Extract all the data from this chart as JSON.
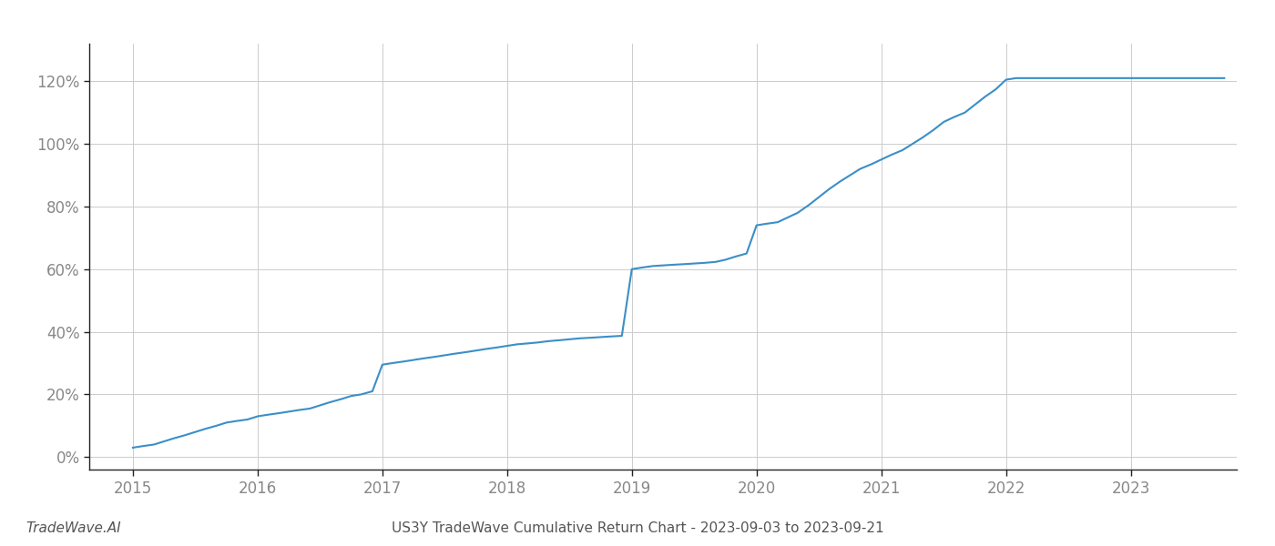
{
  "title": "US3Y TradeWave Cumulative Return Chart - 2023-09-03 to 2023-09-21",
  "watermark": "TradeWave.AI",
  "line_color": "#3a8fc7",
  "background_color": "#ffffff",
  "grid_color": "#cccccc",
  "x_values": [
    2015.0,
    2015.08,
    2015.17,
    2015.25,
    2015.33,
    2015.42,
    2015.5,
    2015.58,
    2015.67,
    2015.75,
    2015.83,
    2015.92,
    2016.0,
    2016.08,
    2016.17,
    2016.25,
    2016.33,
    2016.42,
    2016.5,
    2016.58,
    2016.67,
    2016.75,
    2016.83,
    2016.92,
    2017.0,
    2017.08,
    2017.17,
    2017.25,
    2017.33,
    2017.42,
    2017.5,
    2017.58,
    2017.67,
    2017.75,
    2017.83,
    2017.92,
    2018.0,
    2018.08,
    2018.17,
    2018.25,
    2018.33,
    2018.42,
    2018.5,
    2018.58,
    2018.67,
    2018.75,
    2018.83,
    2018.92,
    2019.0,
    2019.08,
    2019.17,
    2019.25,
    2019.33,
    2019.42,
    2019.5,
    2019.58,
    2019.67,
    2019.75,
    2019.83,
    2019.92,
    2020.0,
    2020.08,
    2020.17,
    2020.25,
    2020.33,
    2020.42,
    2020.5,
    2020.58,
    2020.67,
    2020.75,
    2020.83,
    2020.92,
    2021.0,
    2021.08,
    2021.17,
    2021.25,
    2021.33,
    2021.42,
    2021.5,
    2021.58,
    2021.67,
    2021.75,
    2021.83,
    2021.92,
    2022.0,
    2022.08,
    2022.17,
    2022.25,
    2022.5,
    2022.75,
    2023.0,
    2023.5,
    2023.75
  ],
  "y_values": [
    3.0,
    3.5,
    4.0,
    5.0,
    6.0,
    7.0,
    8.0,
    9.0,
    10.0,
    11.0,
    11.5,
    12.0,
    13.0,
    13.5,
    14.0,
    14.5,
    15.0,
    15.5,
    16.5,
    17.5,
    18.5,
    19.5,
    20.0,
    21.0,
    29.5,
    30.0,
    30.5,
    31.0,
    31.5,
    32.0,
    32.5,
    33.0,
    33.5,
    34.0,
    34.5,
    35.0,
    35.5,
    36.0,
    36.3,
    36.6,
    37.0,
    37.3,
    37.6,
    37.9,
    38.1,
    38.3,
    38.5,
    38.7,
    60.0,
    60.5,
    61.0,
    61.2,
    61.4,
    61.6,
    61.8,
    62.0,
    62.3,
    63.0,
    64.0,
    65.0,
    74.0,
    74.5,
    75.0,
    76.5,
    78.0,
    80.5,
    83.0,
    85.5,
    88.0,
    90.0,
    92.0,
    93.5,
    95.0,
    96.5,
    98.0,
    100.0,
    102.0,
    104.5,
    107.0,
    108.5,
    110.0,
    112.5,
    115.0,
    117.5,
    120.5,
    121.0,
    121.0,
    121.0,
    121.0,
    121.0,
    121.0,
    121.0,
    121.0
  ],
  "yticks": [
    0,
    20,
    40,
    60,
    80,
    100,
    120
  ],
  "xticks": [
    2015,
    2016,
    2017,
    2018,
    2019,
    2020,
    2021,
    2022,
    2023
  ],
  "ylim": [
    -4,
    132
  ],
  "xlim": [
    2014.65,
    2023.85
  ],
  "spine_color": "#222222",
  "tick_label_color": "#888888",
  "footer_text_color": "#555555",
  "title_fontsize": 11,
  "watermark_fontsize": 11,
  "tick_fontsize": 12
}
